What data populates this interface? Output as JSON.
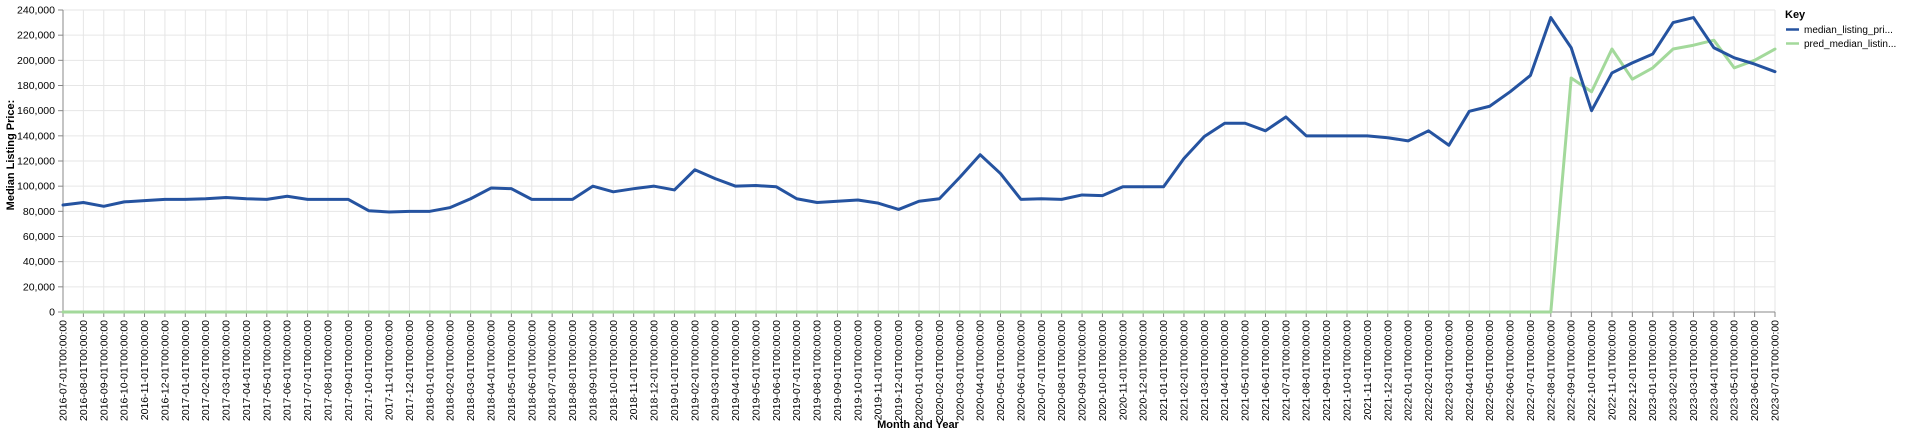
{
  "chart_data": {
    "type": "line",
    "xlabel": "Month and Year",
    "ylabel": "Median Listing Price:",
    "ylim": [
      0,
      240000
    ],
    "y_ticks": [
      "0",
      "20,000",
      "40,000",
      "60,000",
      "80,000",
      "100,000",
      "120,000",
      "140,000",
      "160,000",
      "180,000",
      "200,000",
      "220,000",
      "240,000"
    ],
    "grid": true,
    "legend": {
      "title": "Key",
      "position": "top-right"
    },
    "x": [
      "2016-07-01T00:00:00",
      "2016-08-01T00:00:00",
      "2016-09-01T00:00:00",
      "2016-10-01T00:00:00",
      "2016-11-01T00:00:00",
      "2016-12-01T00:00:00",
      "2017-01-01T00:00:00",
      "2017-02-01T00:00:00",
      "2017-03-01T00:00:00",
      "2017-04-01T00:00:00",
      "2017-05-01T00:00:00",
      "2017-06-01T00:00:00",
      "2017-07-01T00:00:00",
      "2017-08-01T00:00:00",
      "2017-09-01T00:00:00",
      "2017-10-01T00:00:00",
      "2017-11-01T00:00:00",
      "2017-12-01T00:00:00",
      "2018-01-01T00:00:00",
      "2018-02-01T00:00:00",
      "2018-03-01T00:00:00",
      "2018-04-01T00:00:00",
      "2018-05-01T00:00:00",
      "2018-06-01T00:00:00",
      "2018-07-01T00:00:00",
      "2018-08-01T00:00:00",
      "2018-09-01T00:00:00",
      "2018-10-01T00:00:00",
      "2018-11-01T00:00:00",
      "2018-12-01T00:00:00",
      "2019-01-01T00:00:00",
      "2019-02-01T00:00:00",
      "2019-03-01T00:00:00",
      "2019-04-01T00:00:00",
      "2019-05-01T00:00:00",
      "2019-06-01T00:00:00",
      "2019-07-01T00:00:00",
      "2019-08-01T00:00:00",
      "2019-09-01T00:00:00",
      "2019-10-01T00:00:00",
      "2019-11-01T00:00:00",
      "2019-12-01T00:00:00",
      "2020-01-01T00:00:00",
      "2020-02-01T00:00:00",
      "2020-03-01T00:00:00",
      "2020-04-01T00:00:00",
      "2020-05-01T00:00:00",
      "2020-06-01T00:00:00",
      "2020-07-01T00:00:00",
      "2020-08-01T00:00:00",
      "2020-09-01T00:00:00",
      "2020-10-01T00:00:00",
      "2020-11-01T00:00:00",
      "2020-12-01T00:00:00",
      "2021-01-01T00:00:00",
      "2021-02-01T00:00:00",
      "2021-03-01T00:00:00",
      "2021-04-01T00:00:00",
      "2021-05-01T00:00:00",
      "2021-06-01T00:00:00",
      "2021-07-01T00:00:00",
      "2021-08-01T00:00:00",
      "2021-09-01T00:00:00",
      "2021-10-01T00:00:00",
      "2021-11-01T00:00:00",
      "2021-12-01T00:00:00",
      "2022-01-01T00:00:00",
      "2022-02-01T00:00:00",
      "2022-03-01T00:00:00",
      "2022-04-01T00:00:00",
      "2022-05-01T00:00:00",
      "2022-06-01T00:00:00",
      "2022-07-01T00:00:00",
      "2022-08-01T00:00:00",
      "2022-09-01T00:00:00",
      "2022-10-01T00:00:00",
      "2022-11-01T00:00:00",
      "2022-12-01T00:00:00",
      "2023-01-01T00:00:00",
      "2023-02-01T00:00:00",
      "2023-03-01T00:00:00",
      "2023-04-01T00:00:00",
      "2023-05-01T00:00:00",
      "2023-06-01T00:00:00",
      "2023-07-01T00:00:00"
    ],
    "series": [
      {
        "name": "median_listing_pri...",
        "color": "#2553a0",
        "values": [
          85000,
          87000,
          84000,
          87500,
          88500,
          89500,
          89500,
          90000,
          91000,
          90000,
          89500,
          92000,
          89500,
          89500,
          89500,
          80500,
          79500,
          80000,
          80000,
          83000,
          90000,
          98500,
          98000,
          89500,
          89500,
          89500,
          100000,
          95500,
          98000,
          100000,
          97000,
          113000,
          106000,
          100000,
          100500,
          99500,
          90000,
          87000,
          88000,
          89000,
          86500,
          81500,
          88000,
          90000,
          107000,
          125000,
          110000,
          89500,
          90000,
          89500,
          93000,
          92500,
          99500,
          99500,
          99500,
          122000,
          139500,
          150000,
          150000,
          144000,
          155000,
          140000,
          140000,
          140000,
          140000,
          138500,
          136000,
          144000,
          132500,
          159500,
          163500,
          175000,
          188000,
          234000,
          210000,
          160000,
          190000,
          198000,
          205000,
          230000,
          234000,
          210000,
          202000,
          197000,
          191000
        ]
      },
      {
        "name": "pred_median_listin...",
        "color": "#a3d99b",
        "values": [
          0,
          0,
          0,
          0,
          0,
          0,
          0,
          0,
          0,
          0,
          0,
          0,
          0,
          0,
          0,
          0,
          0,
          0,
          0,
          0,
          0,
          0,
          0,
          0,
          0,
          0,
          0,
          0,
          0,
          0,
          0,
          0,
          0,
          0,
          0,
          0,
          0,
          0,
          0,
          0,
          0,
          0,
          0,
          0,
          0,
          0,
          0,
          0,
          0,
          0,
          0,
          0,
          0,
          0,
          0,
          0,
          0,
          0,
          0,
          0,
          0,
          0,
          0,
          0,
          0,
          0,
          0,
          0,
          0,
          0,
          0,
          0,
          0,
          0,
          186000,
          175000,
          209000,
          185000,
          194000,
          209000,
          212000,
          216000,
          194000,
          200000,
          209000
        ]
      }
    ]
  }
}
